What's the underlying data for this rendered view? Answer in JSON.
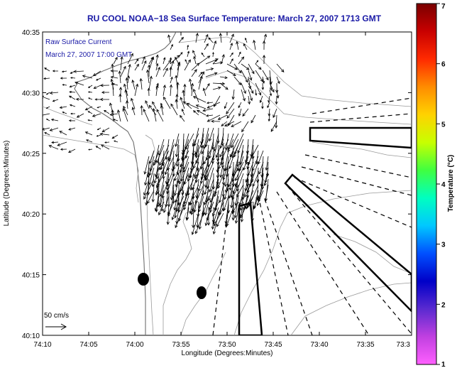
{
  "title": "RU COOL  NOAA−18  Sea Surface Temperature:  March 27, 2007 1713 GMT",
  "overlay": {
    "line1": "Raw Surface Current",
    "line2": "March 27, 2007 17:00 GMT",
    "scale_label": "50 cm/s"
  },
  "axes": {
    "xlabel": "Longitude (Degrees:Minutes)",
    "ylabel": "Latitude (Degrees:Minutes)",
    "x_ticks": [
      "74:10",
      "74:05",
      "74:00",
      "73:55",
      "73:50",
      "73:45",
      "73:40",
      "73:35",
      "73:3"
    ],
    "y_ticks": [
      "40:35",
      "40:30",
      "40:25",
      "40:20",
      "40:15",
      "40:10"
    ]
  },
  "colorbar": {
    "label": "Temperature (°C)",
    "ticks": [
      "7",
      "6",
      "5",
      "4",
      "3",
      "2",
      "1"
    ],
    "min": 1,
    "max": 7,
    "colors": [
      "#7a0000",
      "#c80000",
      "#ff2a00",
      "#ff8c00",
      "#ffd200",
      "#c8ff00",
      "#40ff40",
      "#00ffc0",
      "#00c8ff",
      "#0050ff",
      "#0000c8",
      "#5a2ad0",
      "#c040e0",
      "#ff60ff"
    ]
  },
  "map_colors": {
    "coast": "#6e6e6e",
    "contour": "#9a9a9a",
    "vector": "#000000",
    "zone": "#000000"
  }
}
